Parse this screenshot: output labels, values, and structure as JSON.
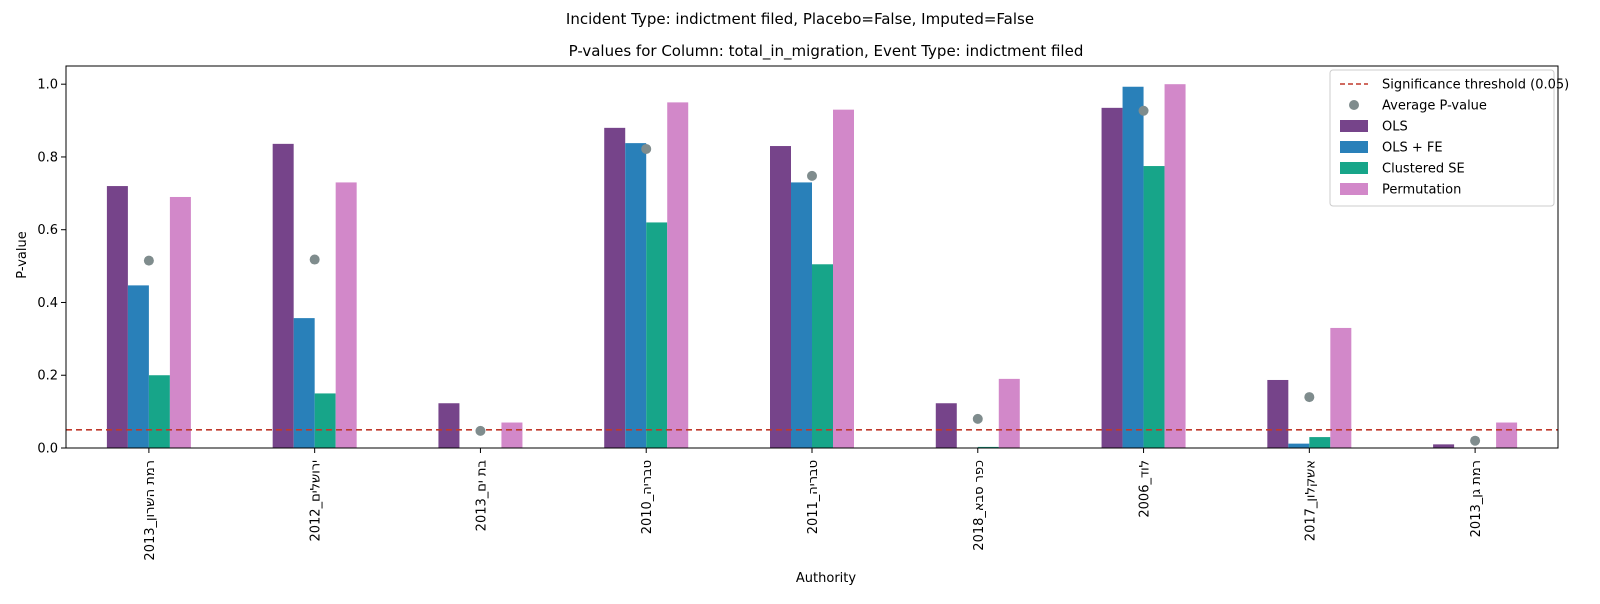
{
  "suptitle": "Incident Type: indictment filed, Placebo=False, Imputed=False",
  "chart_data": {
    "type": "bar",
    "title": "P-values for Column: total_in_migration, Event Type: indictment filed",
    "xlabel": "Authority",
    "ylabel": "P-value",
    "ylim": [
      0,
      1.05
    ],
    "yticks": [
      "0.0",
      "0.2",
      "0.4",
      "0.6",
      "0.8",
      "1.0"
    ],
    "grid": false,
    "legend_position": "top-right",
    "categories": [
      "רמת השרון_2013",
      "ירושלים_2012",
      "בת ים_2013",
      "טבריה_2010",
      "טבריה_2011",
      "כפר סבא_2018",
      "לוד_2006",
      "אשקלון_2017",
      "רמת גן_2013"
    ],
    "series": [
      {
        "name": "OLS",
        "color": "#76448a",
        "values": [
          0.72,
          0.836,
          0.123,
          0.88,
          0.83,
          0.123,
          0.935,
          0.187,
          0.01
        ]
      },
      {
        "name": "OLS + FE",
        "color": "#2980b9",
        "values": [
          0.447,
          0.357,
          0.0,
          0.838,
          0.73,
          0.0,
          0.993,
          0.012,
          0.0
        ]
      },
      {
        "name": "Clustered SE",
        "color": "#17a589",
        "values": [
          0.2,
          0.15,
          0.0,
          0.62,
          0.505,
          0.003,
          0.775,
          0.03,
          0.0
        ]
      },
      {
        "name": "Permutation",
        "color": "#d288c9",
        "values": [
          0.69,
          0.73,
          0.07,
          0.95,
          0.93,
          0.19,
          1.0,
          0.33,
          0.07
        ]
      }
    ],
    "average": {
      "name": "Average P-value",
      "color": "#7f8c8d",
      "values": [
        0.515,
        0.518,
        0.047,
        0.822,
        0.748,
        0.08,
        0.927,
        0.14,
        0.02
      ]
    },
    "threshold": {
      "name": "Significance threshold (0.05)",
      "value": 0.05,
      "color": "#c0392b"
    }
  }
}
